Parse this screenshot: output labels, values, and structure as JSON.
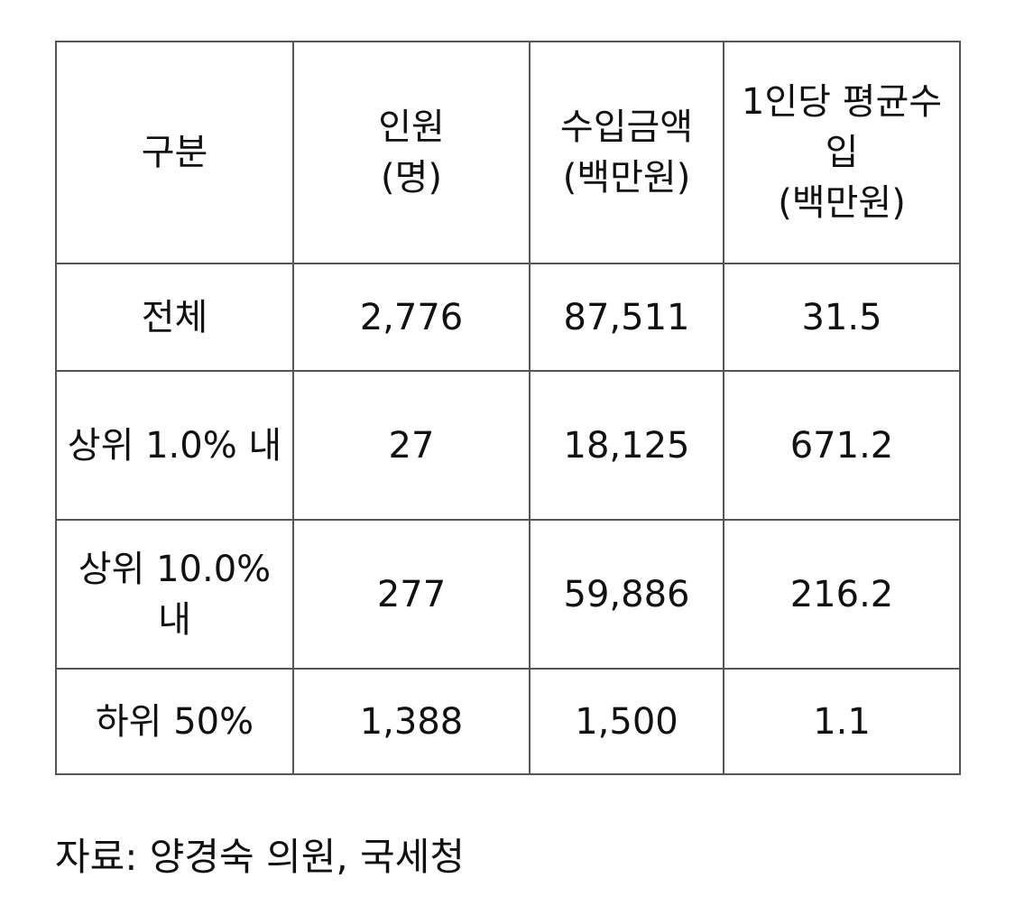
{
  "table": {
    "header": [
      [
        "구분"
      ],
      [
        "인원",
        "(명)"
      ],
      [
        "수입금액",
        "(백만원)"
      ],
      [
        "1인당 평균수입",
        "(백만원)"
      ]
    ],
    "rows": [
      [
        "전체",
        "2,776",
        "87,511",
        "31.5"
      ],
      [
        "상위 1.0% 내",
        "27",
        "18,125",
        "671.2"
      ],
      [
        "상위 10.0% 내",
        "277",
        "59,886",
        "216.2"
      ],
      [
        "하위 50%",
        "1,388",
        "1,500",
        "1.1"
      ]
    ]
  },
  "source": "자료: 양경숙 의원, 국세청"
}
